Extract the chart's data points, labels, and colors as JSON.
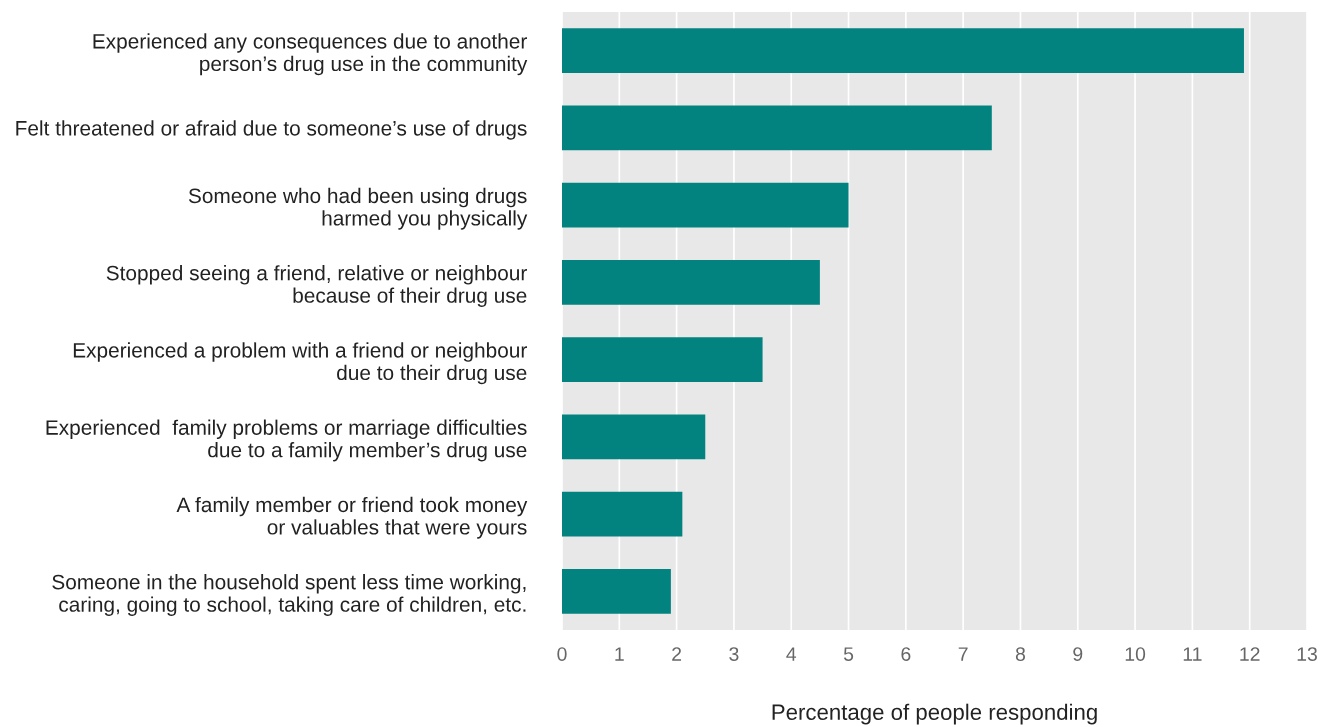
{
  "chart_data": {
    "type": "bar",
    "orientation": "horizontal",
    "xlabel": "Percentage of people responding",
    "categories": [
      "Experienced any consequences due to another\nperson’s drug use in the community",
      "Felt threatened or afraid due to someone’s use of drugs",
      "Someone who had been using drugs\nharmed you physically",
      "Stopped seeing a friend, relative or neighbour\nbecause of their drug use",
      "Experienced a problem with a friend or neighbour\ndue to their drug use",
      "Experienced  family problems or marriage difficulties\ndue to a family member’s drug use",
      "A family member or friend took money\nor valuables that were yours",
      "Someone in the household spent less time working,\ncaring, going to school, taking care of children, etc."
    ],
    "values": [
      11.9,
      7.5,
      5.0,
      4.5,
      3.5,
      2.5,
      2.1,
      1.9
    ],
    "color": "#02837f",
    "xlim": [
      0,
      13
    ],
    "xticks": [
      0,
      1,
      2,
      3,
      4,
      5,
      6,
      7,
      8,
      9,
      10,
      11,
      12,
      13
    ],
    "grid": "x"
  }
}
